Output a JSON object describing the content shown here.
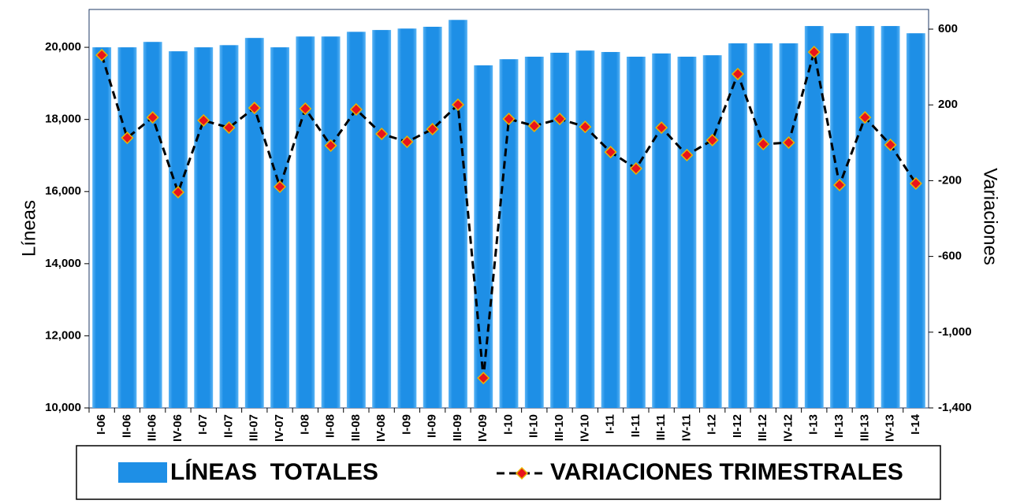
{
  "chart_data": {
    "type": "bar",
    "categories": [
      "I-06",
      "II-06",
      "III-06",
      "IV-06",
      "I-07",
      "II-07",
      "III-07",
      "IV-07",
      "I-08",
      "II-08",
      "III-08",
      "IV-08",
      "I-09",
      "II-09",
      "III-09",
      "IV-09",
      "I-10",
      "II-10",
      "III-10",
      "IV-10",
      "I-11",
      "II-11",
      "III-11",
      "IV-11",
      "I-12",
      "II-12",
      "III-12",
      "IV-12",
      "I-13",
      "II-13",
      "III-13",
      "IV-13",
      "I-14"
    ],
    "y_label": "Líneas",
    "y2_label": "Variaciones",
    "series": [
      {
        "name": "LÍNEAS  TOTALES",
        "type": "bar",
        "color": "#1e8fe6",
        "values": [
          20000,
          20000,
          20150,
          19890,
          20000,
          20060,
          20260,
          20000,
          20300,
          20300,
          20430,
          20480,
          20520,
          20570,
          20760,
          19500,
          19670,
          19740,
          19850,
          19910,
          19870,
          19740,
          19830,
          19740,
          19780,
          20110,
          20110,
          20110,
          20590,
          20390,
          20590,
          20590,
          20390
        ]
      },
      {
        "name": "VARIACIONES TRIMESTRALES",
        "type": "line",
        "axis": "y2",
        "color": "#000000",
        "marker_color": "#e8141c",
        "values": [
          463,
          26,
          134,
          -261,
          118,
          80,
          184,
          -232,
          180,
          -15,
          176,
          47,
          5,
          72,
          201,
          -1242,
          126,
          89,
          126,
          84,
          -49,
          -136,
          80,
          -65,
          14,
          363,
          -7,
          1,
          479,
          -223,
          134,
          -11,
          -215
        ]
      }
    ],
    "ylim": [
      10000,
      21050
    ],
    "yticks": [
      {
        "value": 10000,
        "label": "10,000"
      },
      {
        "value": 12000,
        "label": "12,000"
      },
      {
        "value": 14000,
        "label": "14,000"
      },
      {
        "value": 16000,
        "label": "16,000"
      },
      {
        "value": 18000,
        "label": "18,000"
      },
      {
        "value": 20000,
        "label": "20,000"
      }
    ],
    "y2lim": [
      -1400,
      704
    ],
    "y2ticks": [
      {
        "value": -1400,
        "label": "-1,400"
      },
      {
        "value": -1000,
        "label": "-1,000"
      },
      -600,
      -200,
      200,
      600
    ]
  }
}
